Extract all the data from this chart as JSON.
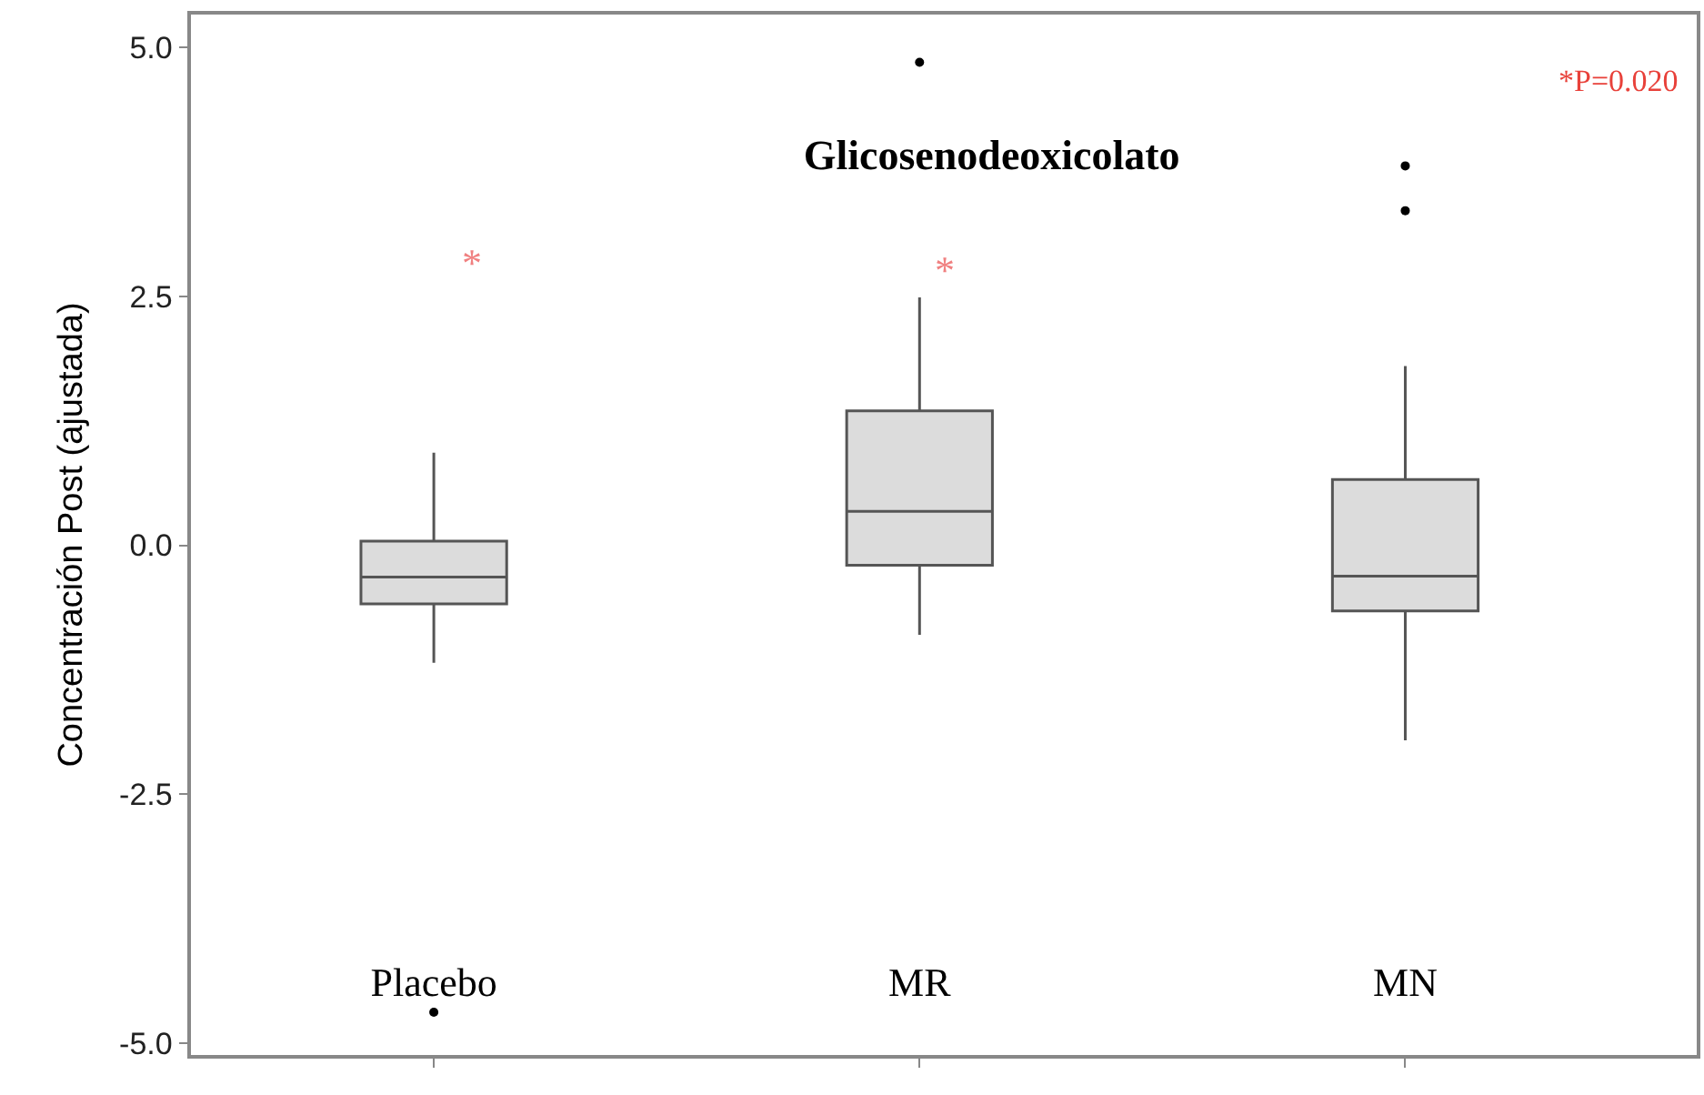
{
  "chart_data": {
    "type": "box",
    "title": "Glicosenodeoxicolato",
    "ylabel": "Concentración Post (ajustada)",
    "categories": [
      "Placebo",
      "MR",
      "MN"
    ],
    "boxes": [
      {
        "low": -1.18,
        "q1": -0.59,
        "median": -0.32,
        "q3": 0.04,
        "high": 0.93,
        "outliers": [
          -4.69
        ]
      },
      {
        "low": -0.9,
        "q1": -0.2,
        "median": 0.34,
        "q3": 1.35,
        "high": 2.49,
        "outliers": [
          4.85
        ]
      },
      {
        "low": -1.96,
        "q1": -0.66,
        "median": -0.31,
        "q3": 0.66,
        "high": 1.8,
        "outliers": [
          3.81,
          3.36
        ]
      }
    ],
    "color": "#dcdcdc",
    "ylim": [
      -5.12,
      5.33
    ],
    "yticks": [
      {
        "value": -5,
        "label": "-5.0"
      },
      {
        "value": -2.5,
        "label": "-2.5"
      },
      {
        "value": 0,
        "label": "0.0"
      },
      {
        "value": 2.5,
        "label": "2.5"
      },
      {
        "value": 5,
        "label": "5.0"
      }
    ],
    "annotations": [
      "*",
      "*",
      "*P=0.020"
    ]
  }
}
